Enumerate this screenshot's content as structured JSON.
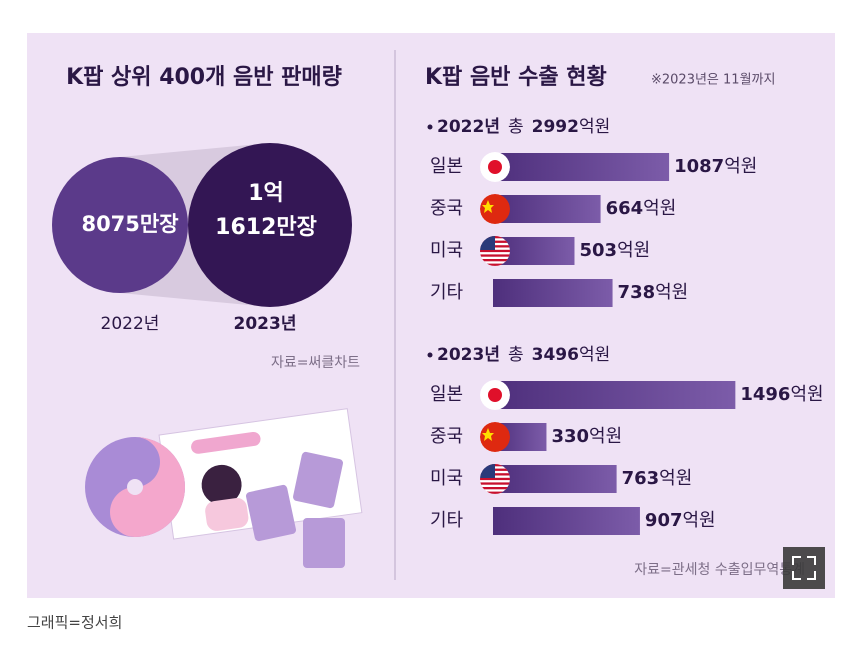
{
  "left": {
    "title": "K팝 상위 400개 음반 판매량",
    "circles": [
      {
        "year": "2022년",
        "lines": [
          "8075만장"
        ]
      },
      {
        "year": "2023년",
        "lines": [
          "1억",
          "1612만장"
        ]
      }
    ],
    "source": "자료=써클차트"
  },
  "right": {
    "title": "K팝 음반 수출 현황",
    "note": "※2023년은 11월까지",
    "unit": "억원",
    "total_prefix": "총",
    "groups": [
      {
        "year": "2022년",
        "total": 2992,
        "items": [
          {
            "country": "일본",
            "value": 1087
          },
          {
            "country": "중국",
            "value": 664
          },
          {
            "country": "미국",
            "value": 503
          },
          {
            "country": "기타",
            "value": 738
          }
        ]
      },
      {
        "year": "2023년",
        "total": 3496,
        "items": [
          {
            "country": "일본",
            "value": 1496
          },
          {
            "country": "중국",
            "value": 330
          },
          {
            "country": "미국",
            "value": 763
          },
          {
            "country": "기타",
            "value": 907
          }
        ]
      }
    ],
    "source": "자료=관세청 수출입무역통계"
  },
  "credit": "그래픽=정서희"
}
